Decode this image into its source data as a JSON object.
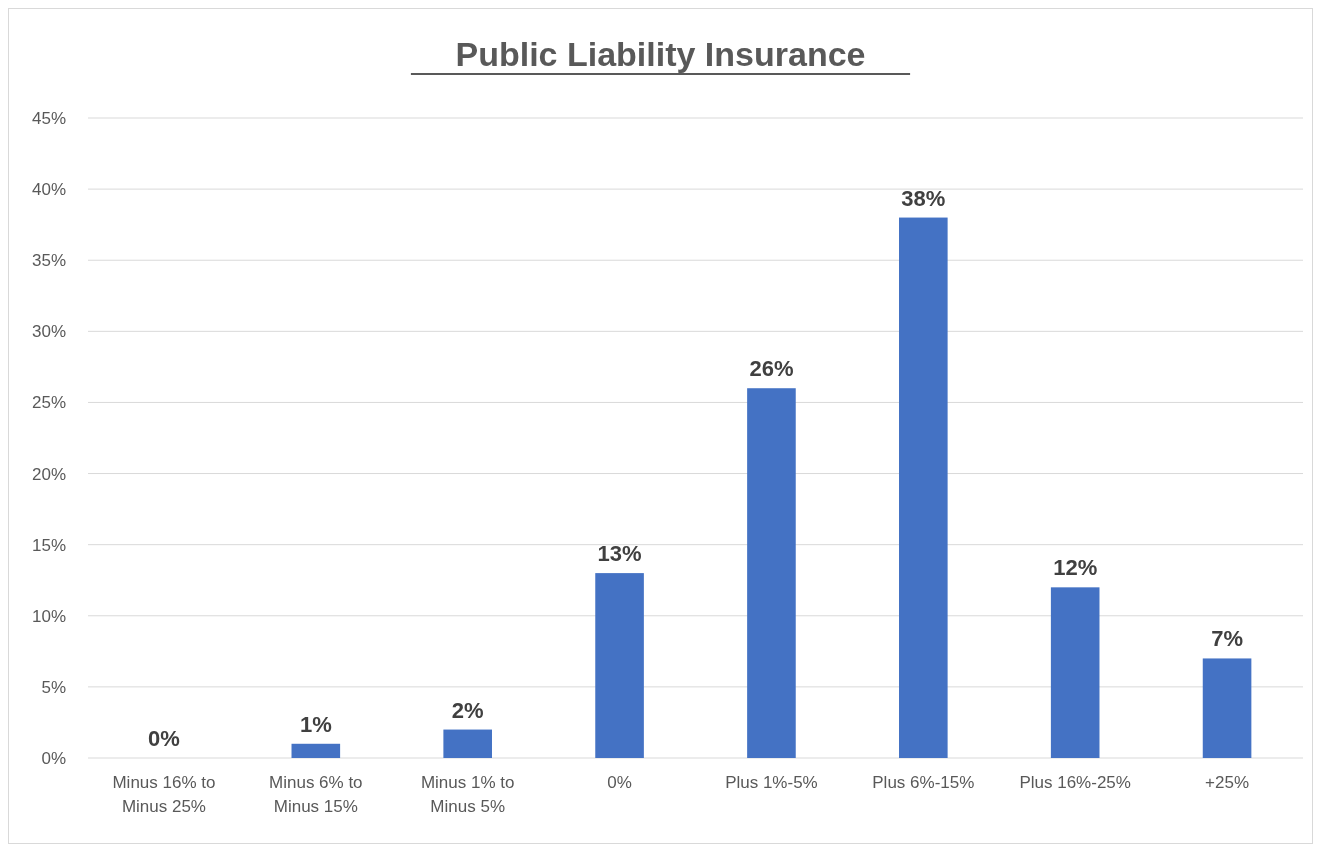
{
  "chart_data": {
    "type": "bar",
    "title": "Public Liability Insurance",
    "categories": [
      "Minus 16% to Minus 25%",
      "Minus 6% to Minus 15%",
      "Minus 1% to Minus 5%",
      "0%",
      "Plus 1%-5%",
      "Plus 6%-15%",
      "Plus 16%-25%",
      "+25%"
    ],
    "values": [
      0,
      1,
      2,
      13,
      26,
      38,
      12,
      7
    ],
    "value_labels": [
      "0%",
      "1%",
      "2%",
      "13%",
      "26%",
      "38%",
      "12%",
      "7%"
    ],
    "color": "#4472c4",
    "ylim": [
      0,
      45
    ],
    "yticks": [
      {
        "value": 0,
        "label": "0%"
      },
      {
        "value": 5,
        "label": "5%"
      },
      {
        "value": 10,
        "label": "10%"
      },
      {
        "value": 15,
        "label": "15%"
      },
      {
        "value": 20,
        "label": "20%"
      },
      {
        "value": 25,
        "label": "25%"
      },
      {
        "value": 30,
        "label": "30%"
      },
      {
        "value": 35,
        "label": "35%"
      },
      {
        "value": 40,
        "label": "40%"
      },
      {
        "value": 45,
        "label": "45%"
      }
    ],
    "grid": "y"
  }
}
